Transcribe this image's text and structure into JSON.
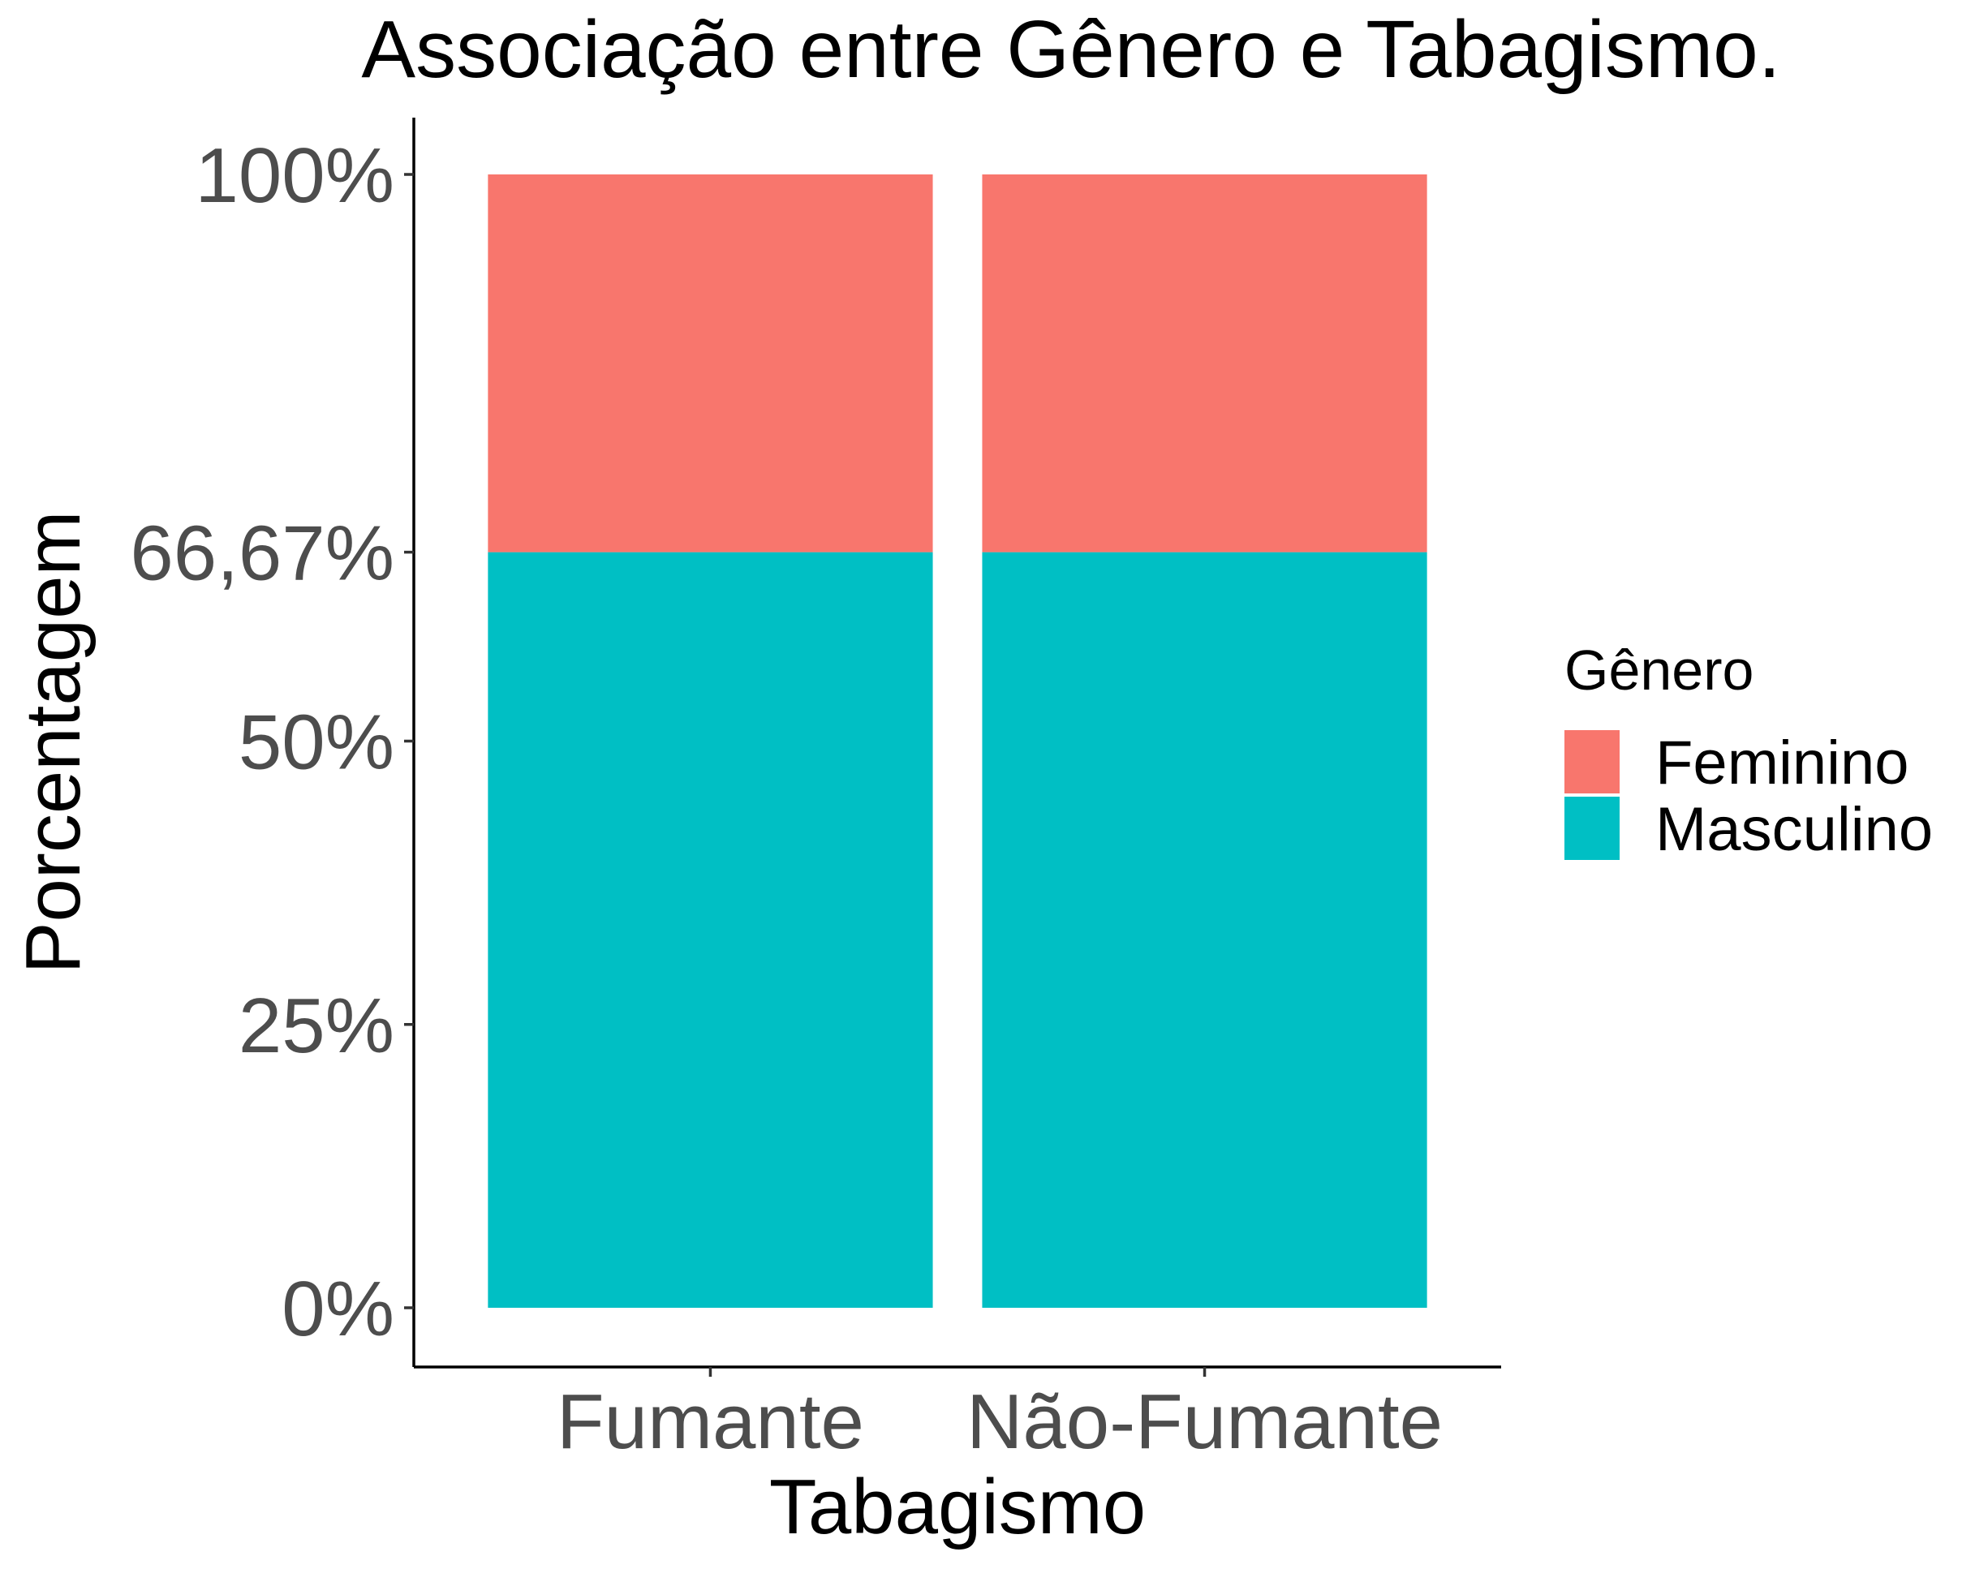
{
  "chart_data": {
    "type": "bar",
    "stacked": true,
    "title": "Associação entre Gênero e Tabagismo.",
    "xlabel": "Tabagismo",
    "ylabel": "Porcentagem",
    "categories": [
      "Fumante",
      "Não-Fumante"
    ],
    "series": [
      {
        "name": "Masculino",
        "color": "#00BFC4",
        "values": [
          66.67,
          66.67
        ]
      },
      {
        "name": "Feminino",
        "color": "#F8766D",
        "values": [
          33.33,
          33.33
        ]
      }
    ],
    "ylim": [
      0,
      100
    ],
    "y_ticks": [
      0,
      25,
      50,
      66.67,
      100
    ],
    "y_tick_labels": [
      "0%",
      "25%",
      "50%",
      "66,67%",
      "100%"
    ],
    "grid": false,
    "legend": {
      "title": "Gênero",
      "position": "right",
      "entries": [
        {
          "label": "Feminino",
          "color": "#F8766D"
        },
        {
          "label": "Masculino",
          "color": "#00BFC4"
        }
      ]
    }
  }
}
